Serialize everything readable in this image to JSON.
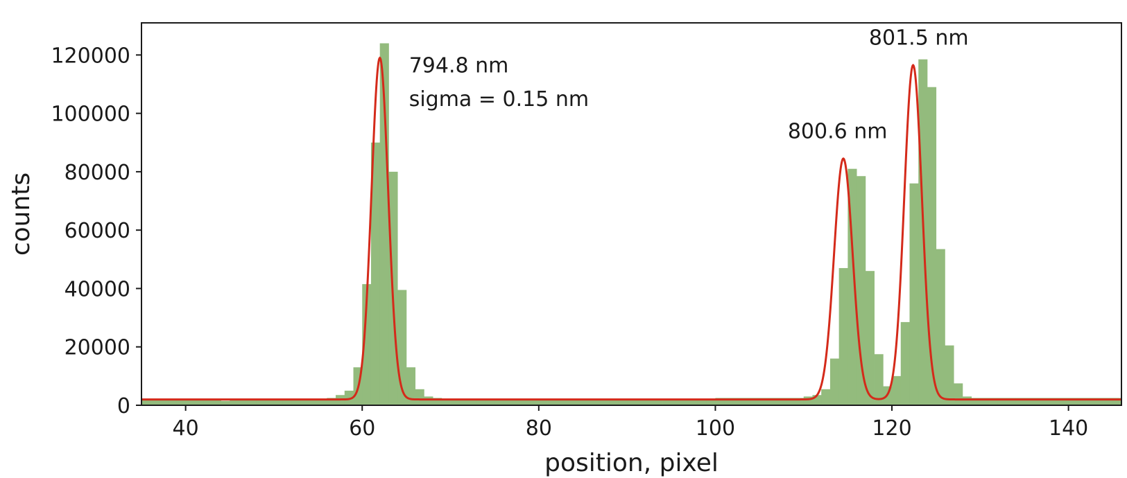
{
  "chart_data": {
    "type": "bar",
    "title": "",
    "xlabel": "position, pixel",
    "ylabel": "counts",
    "xlim": [
      35,
      146
    ],
    "ylim": [
      0,
      131000
    ],
    "xticks": [
      40,
      60,
      80,
      100,
      120,
      140
    ],
    "yticks": [
      0,
      20000,
      40000,
      60000,
      80000,
      100000,
      120000
    ],
    "grid": false,
    "legend": "none",
    "colors": {
      "bars": "#93bb7d",
      "fit": "#d42a1a",
      "axes": "#1a1a1a"
    },
    "histogram": {
      "bin_start": 30,
      "bin_width": 1,
      "counts": [
        2000,
        2000,
        2000,
        2000,
        2000,
        2000,
        2000,
        2000,
        2000,
        2000,
        2000,
        2000,
        2000,
        2000,
        1500,
        2000,
        2000,
        2000,
        2000,
        2000,
        2000,
        2000,
        2000,
        2000,
        2000,
        2000,
        2500,
        3500,
        5000,
        13000,
        41500,
        90000,
        124000,
        80000,
        39500,
        13000,
        5500,
        3000,
        2500,
        2000,
        2000,
        2000,
        2000,
        2000,
        2000,
        2000,
        2000,
        2000,
        2000,
        2000,
        2000,
        2000,
        2000,
        2000,
        2000,
        2000,
        2000,
        2000,
        2000,
        2000,
        2000,
        2000,
        2000,
        2000,
        2000,
        2000,
        2000,
        2000,
        2000,
        2000,
        2500,
        2500,
        2500,
        2500,
        2500,
        2500,
        2500,
        2500,
        2500,
        2500,
        3000,
        3500,
        5500,
        16000,
        47000,
        81000,
        78500,
        46000,
        17500,
        6500,
        10000,
        28500,
        76000,
        118500,
        109000,
        53500,
        20500,
        7500,
        3000,
        2500,
        2500,
        2500,
        2500,
        2500,
        2500,
        2500,
        2500,
        2500,
        2500,
        2500,
        2500,
        2500,
        2500,
        2500,
        2500,
        2500,
        2500,
        2500,
        2500,
        2500
      ]
    },
    "fit": {
      "baseline": 2000,
      "peaks": [
        {
          "center": 62.0,
          "amplitude": 117000,
          "sigma": 0.95
        },
        {
          "center": 114.5,
          "amplitude": 82500,
          "sigma": 1.05
        },
        {
          "center": 122.4,
          "amplitude": 114500,
          "sigma": 1.0
        }
      ]
    },
    "annotations": [
      {
        "text": "794.8 nm",
        "x": 65.3,
        "y": 114000
      },
      {
        "text": "sigma = 0.15 nm",
        "x": 65.3,
        "y": 102500
      },
      {
        "text": "800.6 nm",
        "x": 108.2,
        "y": 91500
      },
      {
        "text": "801.5 nm",
        "x": 117.4,
        "y": 123500
      }
    ]
  }
}
